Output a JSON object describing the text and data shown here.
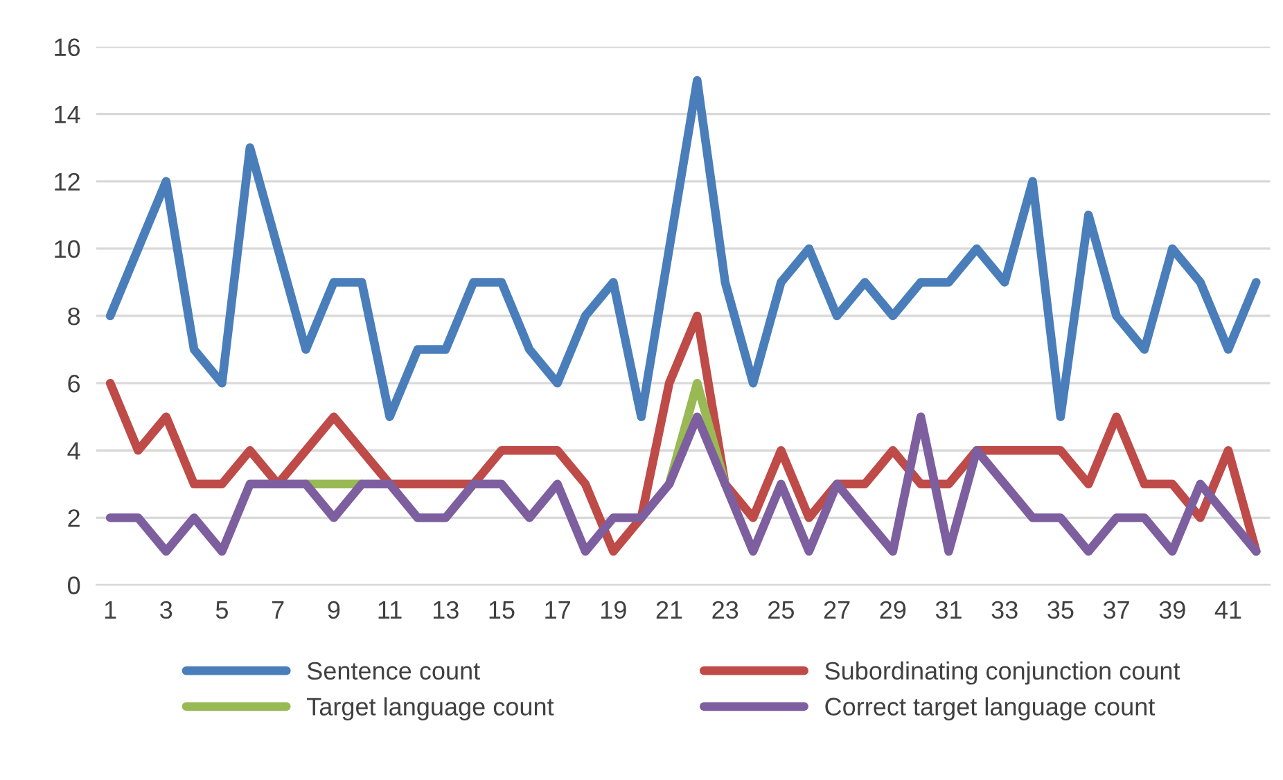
{
  "chart_data": {
    "type": "line",
    "categories": [
      "1",
      null,
      "3",
      null,
      "5",
      null,
      "7",
      null,
      "9",
      null,
      "11",
      null,
      "13",
      null,
      "15",
      null,
      "17",
      null,
      "19",
      null,
      "21",
      null,
      "23",
      null,
      "25",
      null,
      "27",
      null,
      "29",
      null,
      "31",
      null,
      "33",
      null,
      "35",
      null,
      "37",
      null,
      "39",
      null,
      "41",
      null
    ],
    "series": [
      {
        "name": "Sentence count",
        "color": "#4a7ebb",
        "values": [
          8,
          10,
          12,
          7,
          6,
          13,
          10,
          7,
          9,
          9,
          5,
          7,
          7,
          9,
          9,
          7,
          6,
          8,
          9,
          5,
          10,
          15,
          9,
          6,
          9,
          10,
          8,
          9,
          8,
          9,
          9,
          10,
          9,
          12,
          5,
          11,
          8,
          7,
          10,
          9,
          7,
          9
        ]
      },
      {
        "name": "Subordinating conjunction count",
        "color": "#be4b48",
        "values": [
          6,
          4,
          5,
          3,
          3,
          4,
          3,
          4,
          5,
          4,
          3,
          3,
          3,
          3,
          4,
          4,
          4,
          3,
          1,
          2,
          6,
          8,
          3,
          2,
          4,
          2,
          3,
          3,
          4,
          3,
          3,
          4,
          4,
          4,
          4,
          3,
          5,
          3,
          3,
          2,
          4,
          1
        ]
      },
      {
        "name": "Target language count",
        "color": "#98b954",
        "values": [
          null,
          null,
          null,
          null,
          null,
          null,
          null,
          3,
          3,
          3,
          null,
          null,
          null,
          null,
          null,
          null,
          null,
          null,
          null,
          null,
          3,
          6,
          3,
          null,
          null,
          null,
          null,
          null,
          null,
          null,
          null,
          null,
          null,
          null,
          null,
          null,
          null,
          null,
          null,
          null,
          null,
          null
        ]
      },
      {
        "name": "Correct target language count",
        "color": "#7d5fa0",
        "values": [
          2,
          2,
          1,
          2,
          1,
          3,
          3,
          3,
          2,
          3,
          3,
          2,
          2,
          3,
          3,
          2,
          3,
          1,
          2,
          2,
          3,
          5,
          3,
          1,
          3,
          1,
          3,
          2,
          1,
          5,
          1,
          4,
          3,
          2,
          2,
          1,
          2,
          2,
          1,
          3,
          2,
          1
        ]
      }
    ],
    "ylim": [
      0,
      16
    ],
    "yticks": [
      0,
      2,
      4,
      6,
      8,
      10,
      12,
      14,
      16
    ],
    "grid": "y",
    "legend": "bottom",
    "marker": "none",
    "line_style": "solid"
  }
}
